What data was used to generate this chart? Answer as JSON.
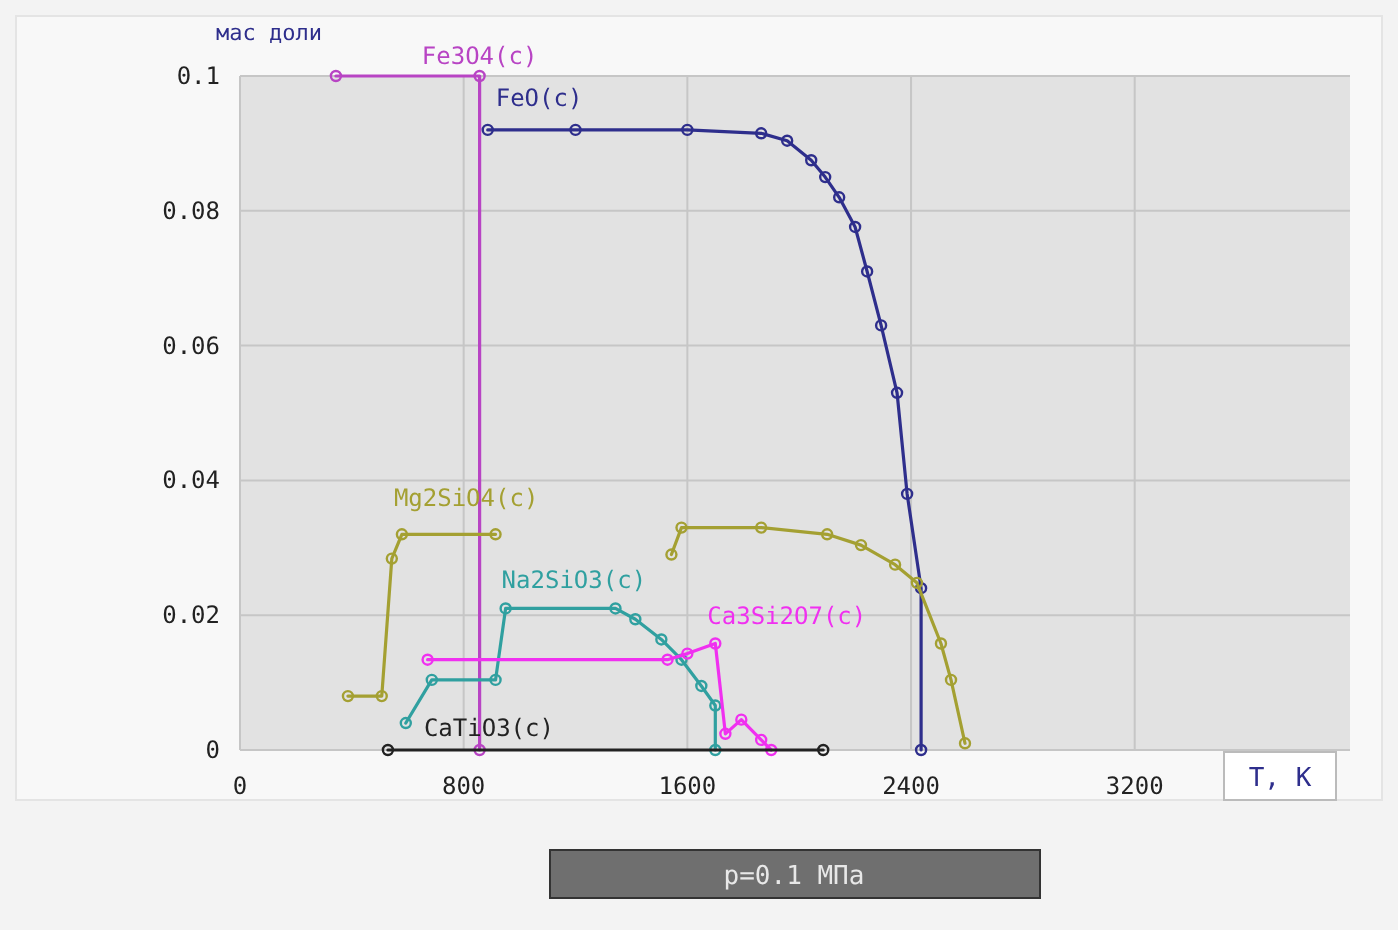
{
  "chart_data": {
    "type": "line",
    "ylabel": "мас доли",
    "xlabel": "T, K",
    "annotations": [
      "p=0.1 МПа"
    ],
    "xlim": [
      0,
      3970
    ],
    "ylim": [
      0,
      0.1
    ],
    "xticks": [
      0,
      800,
      1600,
      2400,
      3200
    ],
    "yticks": [
      0,
      0.02,
      0.04,
      0.06,
      0.08,
      0.1
    ],
    "grid": true,
    "marker": "circle",
    "line_style": "solid",
    "series": [
      {
        "name": "Fe3O4(c)",
        "color": "#b844c4",
        "x": [
          343,
          857,
          857
        ],
        "values": [
          0.1,
          0.1,
          0
        ]
      },
      {
        "name": "FeO(c)",
        "color": "#2e2e8c",
        "x": [
          886,
          1200,
          1600,
          1864,
          1957,
          2043,
          2093,
          2143,
          2200,
          2243,
          2293,
          2350,
          2386,
          2436,
          2436
        ],
        "values": [
          0.092,
          0.092,
          0.092,
          0.0915,
          0.0904,
          0.0875,
          0.085,
          0.082,
          0.0776,
          0.071,
          0.063,
          0.053,
          0.038,
          0.024,
          0
        ]
      },
      {
        "name": "Mg2SiO4(c)",
        "color": "#a4a032",
        "x": [
          386,
          507,
          543,
          579,
          914,
          null,
          1543,
          1579,
          1864,
          2100,
          2221,
          2343,
          2421,
          2507,
          2543,
          2593
        ],
        "values": [
          0.008,
          0.008,
          0.0284,
          0.032,
          0.032,
          null,
          0.029,
          0.033,
          0.033,
          0.032,
          0.0304,
          0.0275,
          0.0248,
          0.0158,
          0.0104,
          0.001
        ]
      },
      {
        "name": "Na2SiO3(c)",
        "color": "#30a0a0",
        "x": [
          593,
          686,
          914,
          950,
          1343,
          1414,
          1507,
          1579,
          1650,
          1700,
          1700
        ],
        "values": [
          0.004,
          0.0104,
          0.0104,
          0.021,
          0.021,
          0.0194,
          0.0164,
          0.0134,
          0.0095,
          0.0066,
          0
        ]
      },
      {
        "name": "Ca3Si2O7(c)",
        "color": "#f030f0",
        "x": [
          671,
          1529,
          1600,
          1700,
          1736,
          1793,
          1864,
          1900
        ],
        "values": [
          0.0134,
          0.0134,
          0.0143,
          0.0158,
          0.0024,
          0.0045,
          0.0015,
          0
        ]
      },
      {
        "name": "CaTiO3(c)",
        "color": "#222222",
        "x": [
          529,
          2086
        ],
        "values": [
          0,
          0
        ]
      }
    ]
  }
}
